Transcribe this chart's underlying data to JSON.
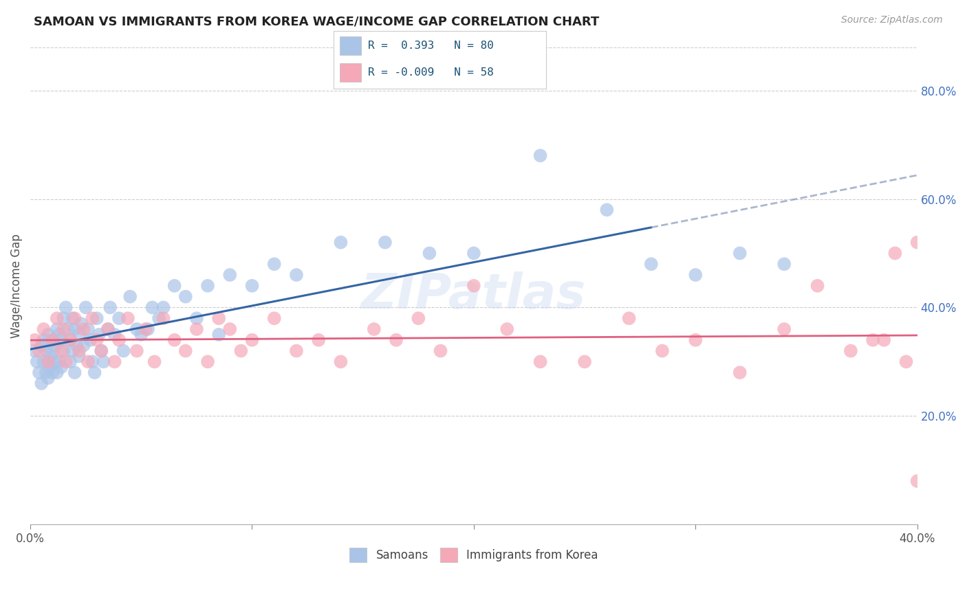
{
  "title": "SAMOAN VS IMMIGRANTS FROM KOREA WAGE/INCOME GAP CORRELATION CHART",
  "source": "Source: ZipAtlas.com",
  "ylabel": "Wage/Income Gap",
  "xmin": 0.0,
  "xmax": 0.4,
  "ymin": 0.0,
  "ymax": 0.88,
  "x_ticks": [
    0.0,
    0.1,
    0.2,
    0.3,
    0.4
  ],
  "x_tick_labels": [
    "0.0%",
    "",
    "",
    "",
    "40.0%"
  ],
  "y_ticks_right": [
    0.2,
    0.4,
    0.6,
    0.8
  ],
  "y_tick_labels_right": [
    "20.0%",
    "40.0%",
    "60.0%",
    "80.0%"
  ],
  "background_color": "#ffffff",
  "grid_color": "#cccccc",
  "watermark": "ZIPatlas",
  "blue_scatter_color": "#aac4e8",
  "pink_scatter_color": "#f5a8b8",
  "blue_line_color": "#3465a4",
  "pink_line_color": "#e06080",
  "samoans_label": "Samoans",
  "korea_label": "Immigrants from Korea",
  "samoans_x": [
    0.002,
    0.003,
    0.004,
    0.005,
    0.005,
    0.006,
    0.006,
    0.007,
    0.007,
    0.008,
    0.008,
    0.008,
    0.009,
    0.009,
    0.01,
    0.01,
    0.01,
    0.011,
    0.011,
    0.012,
    0.012,
    0.013,
    0.013,
    0.014,
    0.014,
    0.015,
    0.015,
    0.016,
    0.017,
    0.018,
    0.018,
    0.019,
    0.019,
    0.02,
    0.02,
    0.021,
    0.022,
    0.022,
    0.023,
    0.024,
    0.025,
    0.026,
    0.027,
    0.028,
    0.029,
    0.03,
    0.031,
    0.032,
    0.033,
    0.035,
    0.036,
    0.038,
    0.04,
    0.042,
    0.045,
    0.048,
    0.05,
    0.053,
    0.055,
    0.058,
    0.06,
    0.065,
    0.07,
    0.075,
    0.08,
    0.085,
    0.09,
    0.1,
    0.11,
    0.12,
    0.14,
    0.16,
    0.18,
    0.2,
    0.23,
    0.26,
    0.28,
    0.3,
    0.32,
    0.34
  ],
  "samoans_y": [
    0.32,
    0.3,
    0.28,
    0.26,
    0.33,
    0.3,
    0.34,
    0.28,
    0.32,
    0.27,
    0.3,
    0.35,
    0.29,
    0.31,
    0.34,
    0.28,
    0.32,
    0.33,
    0.3,
    0.36,
    0.28,
    0.35,
    0.3,
    0.34,
    0.29,
    0.38,
    0.32,
    0.4,
    0.36,
    0.34,
    0.3,
    0.38,
    0.32,
    0.36,
    0.28,
    0.33,
    0.35,
    0.31,
    0.37,
    0.33,
    0.4,
    0.36,
    0.34,
    0.3,
    0.28,
    0.38,
    0.35,
    0.32,
    0.3,
    0.36,
    0.4,
    0.35,
    0.38,
    0.32,
    0.42,
    0.36,
    0.35,
    0.36,
    0.4,
    0.38,
    0.4,
    0.44,
    0.42,
    0.38,
    0.44,
    0.35,
    0.46,
    0.44,
    0.48,
    0.46,
    0.52,
    0.52,
    0.5,
    0.5,
    0.68,
    0.58,
    0.48,
    0.46,
    0.5,
    0.48
  ],
  "korea_x": [
    0.002,
    0.004,
    0.006,
    0.008,
    0.01,
    0.012,
    0.014,
    0.015,
    0.016,
    0.018,
    0.02,
    0.022,
    0.024,
    0.026,
    0.028,
    0.03,
    0.032,
    0.035,
    0.038,
    0.04,
    0.044,
    0.048,
    0.052,
    0.056,
    0.06,
    0.065,
    0.07,
    0.075,
    0.08,
    0.085,
    0.09,
    0.095,
    0.1,
    0.11,
    0.12,
    0.13,
    0.14,
    0.155,
    0.165,
    0.175,
    0.185,
    0.2,
    0.215,
    0.23,
    0.25,
    0.27,
    0.285,
    0.3,
    0.32,
    0.34,
    0.355,
    0.37,
    0.385,
    0.395,
    0.4,
    0.4,
    0.39,
    0.38
  ],
  "korea_y": [
    0.34,
    0.32,
    0.36,
    0.3,
    0.34,
    0.38,
    0.32,
    0.36,
    0.3,
    0.34,
    0.38,
    0.32,
    0.36,
    0.3,
    0.38,
    0.34,
    0.32,
    0.36,
    0.3,
    0.34,
    0.38,
    0.32,
    0.36,
    0.3,
    0.38,
    0.34,
    0.32,
    0.36,
    0.3,
    0.38,
    0.36,
    0.32,
    0.34,
    0.38,
    0.32,
    0.34,
    0.3,
    0.36,
    0.34,
    0.38,
    0.32,
    0.44,
    0.36,
    0.3,
    0.3,
    0.38,
    0.32,
    0.34,
    0.28,
    0.36,
    0.44,
    0.32,
    0.34,
    0.3,
    0.08,
    0.52,
    0.5,
    0.34
  ]
}
